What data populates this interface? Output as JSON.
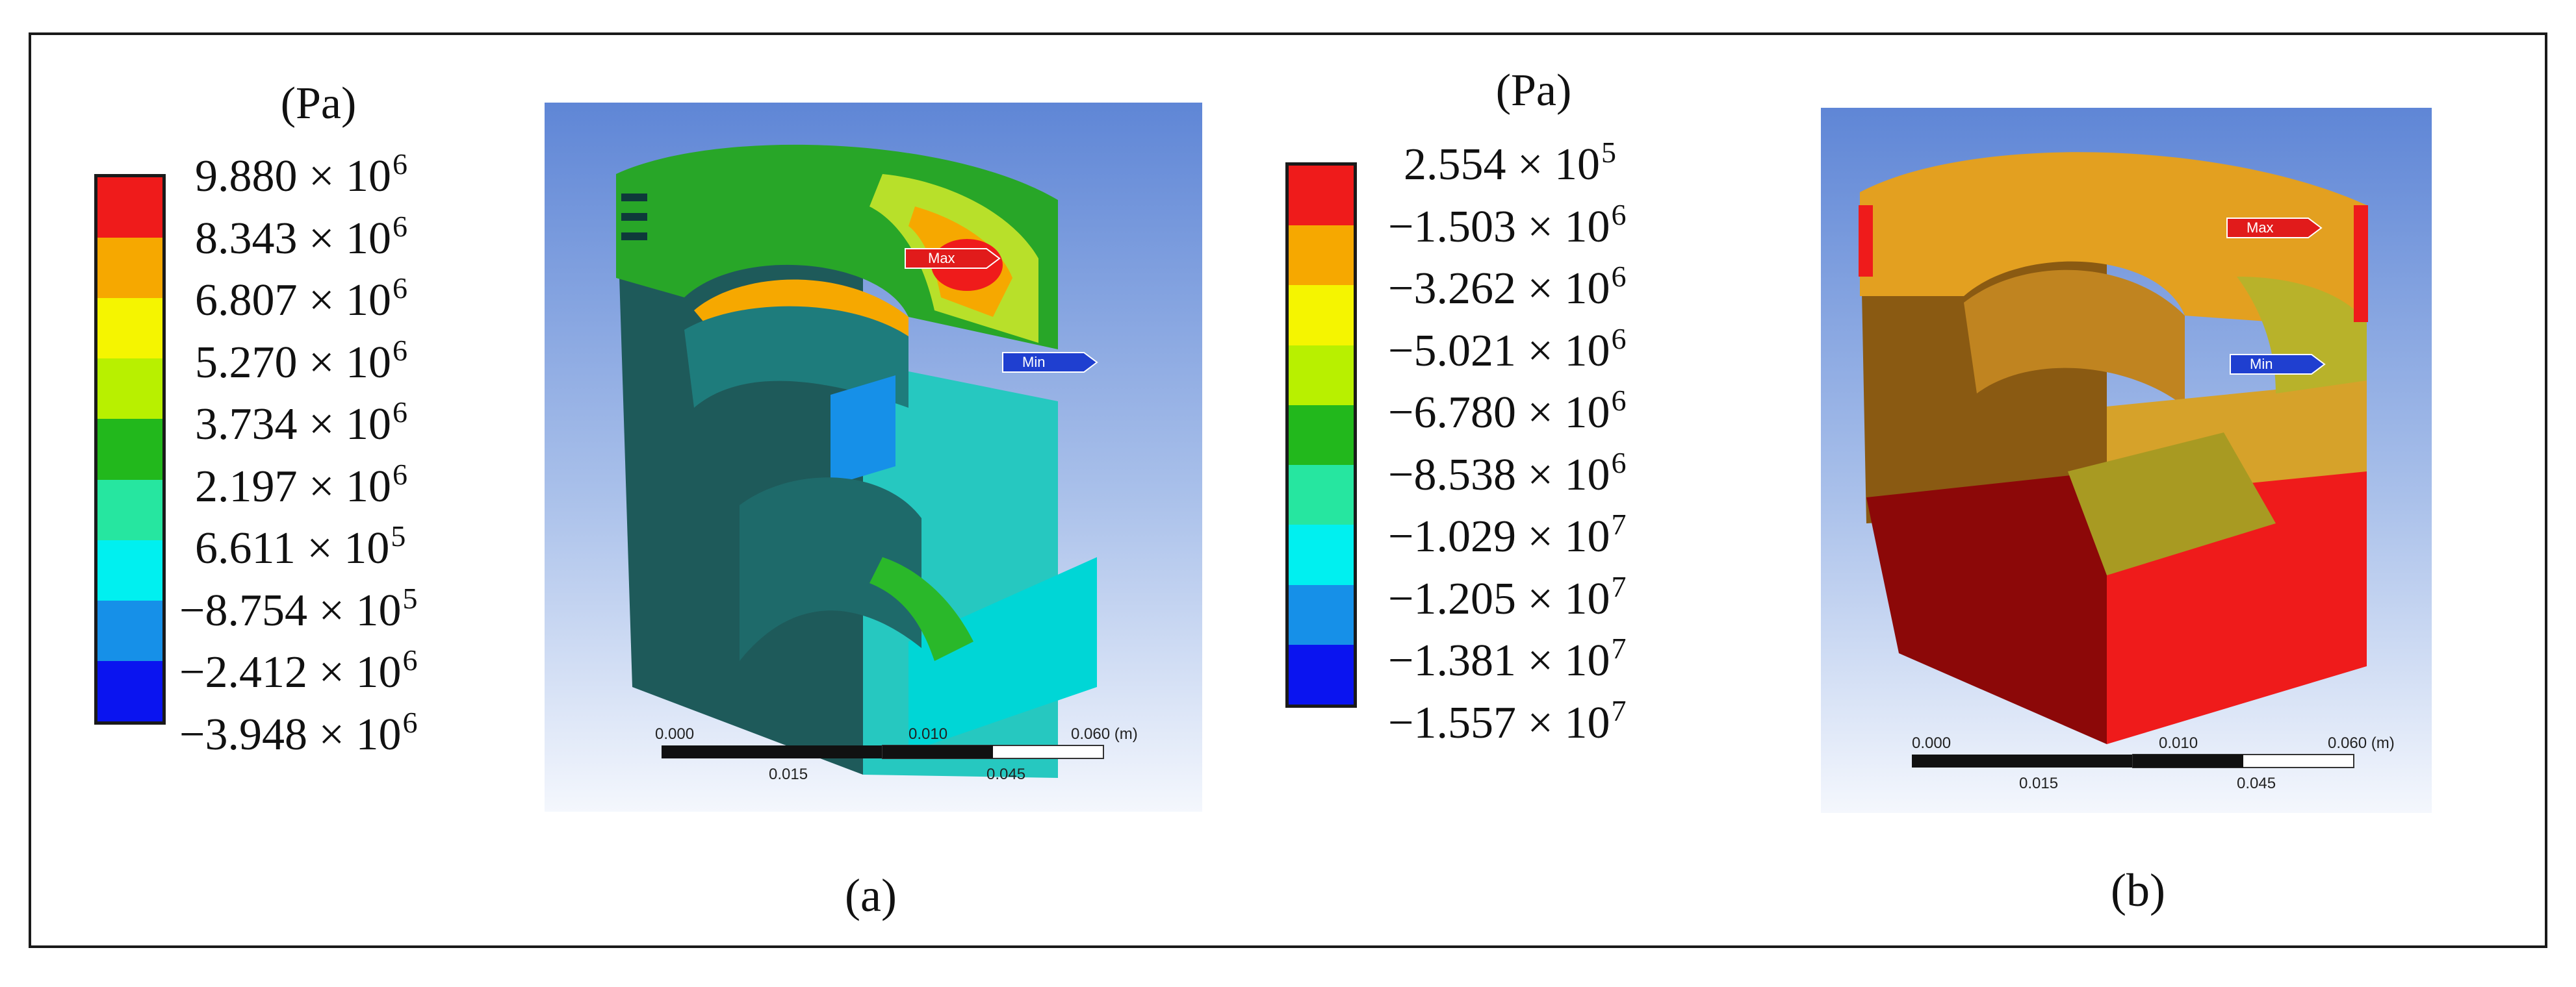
{
  "panels": [
    {
      "id": "a",
      "caption": "(a)",
      "unit": "(Pa)",
      "legend": {
        "colors": [
          "#ef1b1b",
          "#f6a800",
          "#f5f500",
          "#b8f000",
          "#22b81c",
          "#26e6a0",
          "#00f0f0",
          "#1690e8",
          "#0a14f0"
        ],
        "labels": [
          {
            "mantissa": "9.880 × 10",
            "exp": "6"
          },
          {
            "mantissa": "8.343 × 10",
            "exp": "6"
          },
          {
            "mantissa": "6.807 × 10",
            "exp": "6"
          },
          {
            "mantissa": "5.270 × 10",
            "exp": "6"
          },
          {
            "mantissa": "3.734 × 10",
            "exp": "6"
          },
          {
            "mantissa": "2.197 × 10",
            "exp": "6"
          },
          {
            "mantissa": "6.611 × 10",
            "exp": "5"
          },
          {
            "mantissa": "−8.754 × 10",
            "exp": "5"
          },
          {
            "mantissa": "−2.412 × 10",
            "exp": "6"
          },
          {
            "mantissa": "−3.948 × 10",
            "exp": "6"
          }
        ]
      },
      "markers": {
        "max": "Max",
        "min": "Min"
      },
      "scale": {
        "top": [
          "0.000",
          "0.010",
          "0.060 (m)"
        ],
        "bottom": [
          "0.015",
          "0.045"
        ]
      }
    },
    {
      "id": "b",
      "caption": "(b)",
      "unit": "(Pa)",
      "legend": {
        "colors": [
          "#ef1b1b",
          "#f6a800",
          "#f5f500",
          "#b8f000",
          "#22b81c",
          "#26e6a0",
          "#00f0f0",
          "#1690e8",
          "#0a14f0"
        ],
        "labels": [
          {
            "mantissa": "2.554 × 10",
            "exp": "5"
          },
          {
            "mantissa": "−1.503 × 10",
            "exp": "6"
          },
          {
            "mantissa": "−3.262 × 10",
            "exp": "6"
          },
          {
            "mantissa": "−5.021 × 10",
            "exp": "6"
          },
          {
            "mantissa": "−6.780 × 10",
            "exp": "6"
          },
          {
            "mantissa": "−8.538 × 10",
            "exp": "6"
          },
          {
            "mantissa": "−1.029 × 10",
            "exp": "7"
          },
          {
            "mantissa": "−1.205 × 10",
            "exp": "7"
          },
          {
            "mantissa": "−1.381 × 10",
            "exp": "7"
          },
          {
            "mantissa": "−1.557 × 10",
            "exp": "7"
          }
        ]
      },
      "markers": {
        "max": "Max",
        "min": "Min"
      },
      "scale": {
        "top": [
          "0.000",
          "0.010",
          "0.060 (m)"
        ],
        "bottom": [
          "0.015",
          "0.045"
        ]
      }
    }
  ]
}
